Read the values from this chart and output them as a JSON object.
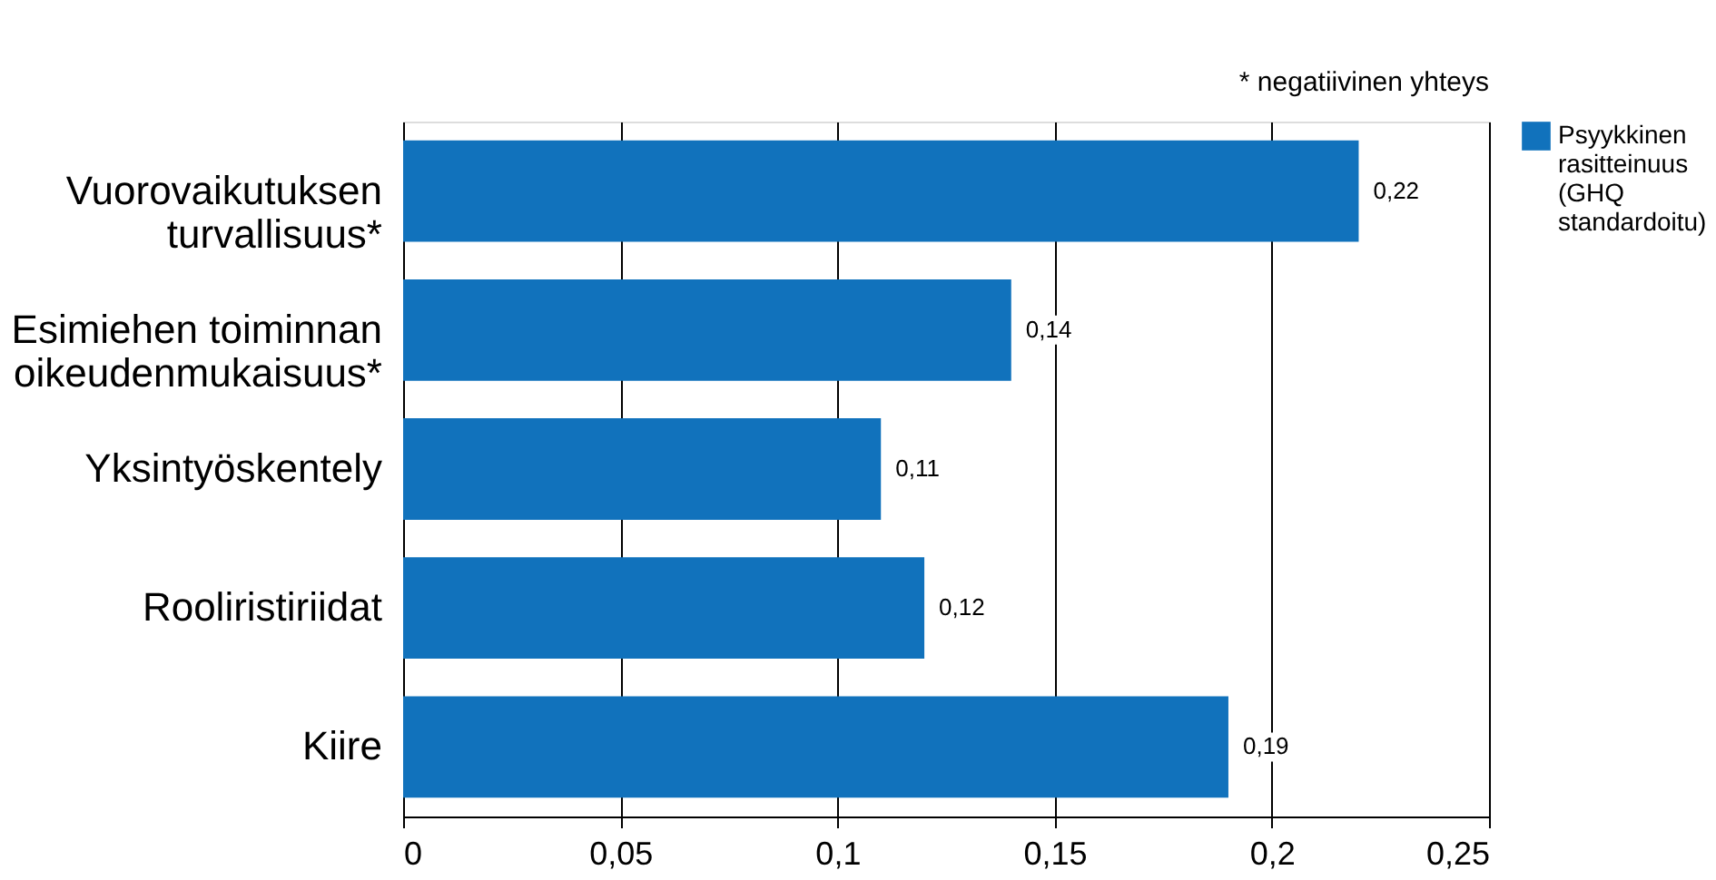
{
  "chart_data": {
    "type": "bar",
    "orientation": "horizontal",
    "categories": [
      "Vuorovaikutuksen\nturvallisuus*",
      "Esimiehen toiminnan\noikeudenmukaisuus*",
      "Yksintyöskentely",
      "Rooliristiriidat",
      "Kiire"
    ],
    "series": [
      {
        "name": "Psyykkinen rasitteinuus (GHQ standardoitu)",
        "color": "#1172bc",
        "values": [
          0.22,
          0.14,
          0.11,
          0.12,
          0.19
        ],
        "value_labels": [
          "0,22",
          "0,14",
          "0,11",
          "0,12",
          "0,19"
        ]
      }
    ],
    "xlim": [
      0,
      0.25
    ],
    "xticks": [
      0,
      {
        "value": 0.05,
        "label": "0,05"
      },
      {
        "value": 0.1,
        "label": "0,1"
      },
      {
        "value": 0.15,
        "label": "0,15"
      },
      {
        "value": 0.2,
        "label": "0,2"
      },
      {
        "value": 0.25,
        "label": "0,25"
      }
    ],
    "grid": "x",
    "legend": "top right",
    "annotations": [
      "* negatiivinen yhteys"
    ]
  }
}
